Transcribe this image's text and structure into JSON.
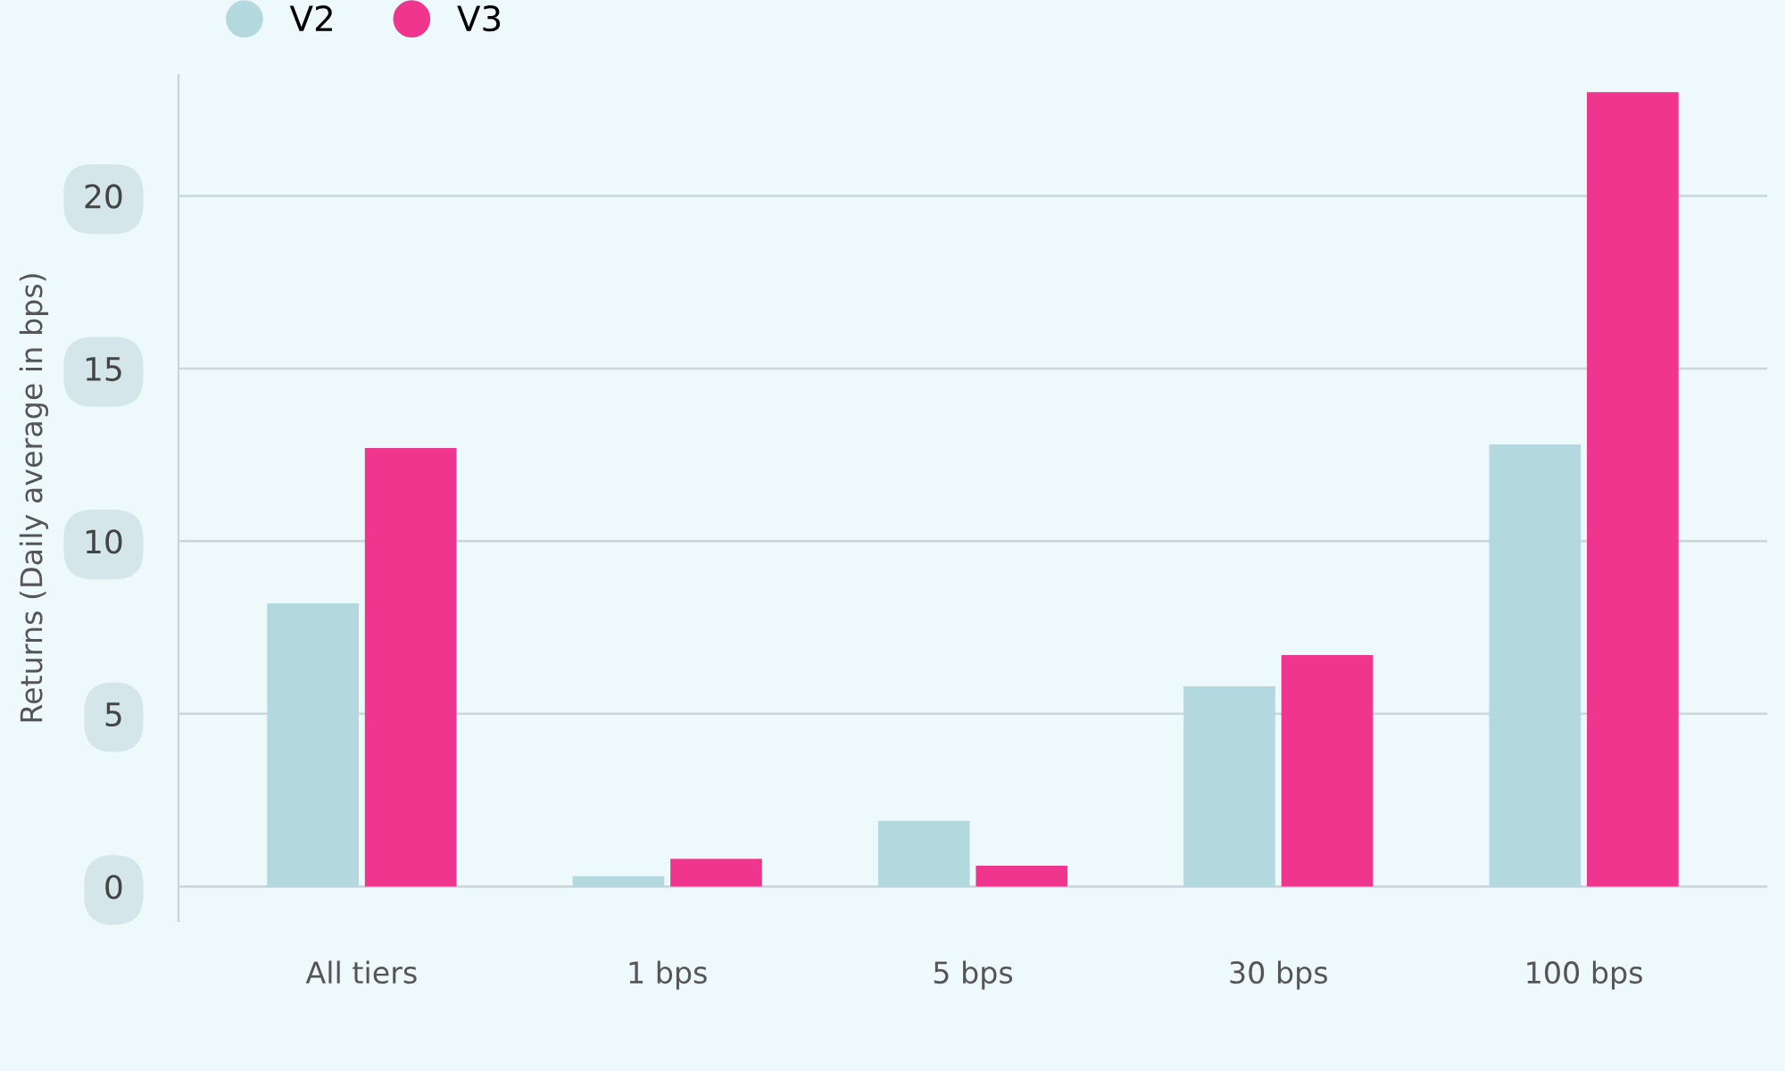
{
  "chart_data": {
    "type": "bar",
    "ylabel": "Returns (Daily average in bps)",
    "categories": [
      "All tiers",
      "1 bps",
      "5 bps",
      "30 bps",
      "100 bps"
    ],
    "series": [
      {
        "name": "V2",
        "color": "#b3d9df",
        "values": [
          8.2,
          0.3,
          1.9,
          5.8,
          12.8
        ]
      },
      {
        "name": "V3",
        "color": "#f0358f",
        "values": [
          12.7,
          0.8,
          0.6,
          6.7,
          23.0
        ]
      }
    ],
    "ylim": [
      -1,
      23.5
    ],
    "yticks": [
      0,
      5,
      10,
      15,
      20
    ],
    "grid": "y",
    "legend": "top left"
  }
}
